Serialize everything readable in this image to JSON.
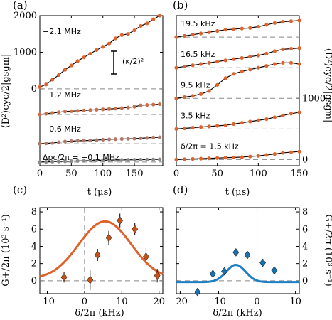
{
  "chart_data": [
    {
      "panel": "(a)",
      "type": "scatter",
      "xlabel": "t (μs)",
      "ylabel": "⟨D²⟩cyc/2|gsgm|",
      "xlim": [
        0,
        195
      ],
      "ylim": [
        -2100,
        2000
      ],
      "xticks": [
        0,
        50,
        100,
        150
      ],
      "yticks": [
        0,
        1000,
        2000
      ],
      "annotation": "(κ/2)²",
      "series": [
        {
          "name": "−2.1 MHz",
          "color": "#e0622a",
          "offset": 0,
          "x": [
            0,
            10,
            20,
            30,
            40,
            50,
            60,
            70,
            80,
            90,
            100,
            110,
            120,
            130,
            140,
            150,
            160,
            170,
            180,
            190
          ],
          "y": [
            50,
            120,
            250,
            380,
            520,
            640,
            760,
            860,
            960,
            1060,
            1150,
            1240,
            1380,
            1470,
            1500,
            1600,
            1720,
            1790,
            1900,
            2000
          ]
        },
        {
          "name": "−1.2 MHz",
          "color": "#c8704a",
          "offset": -700,
          "x": [
            0,
            10,
            20,
            30,
            40,
            50,
            60,
            70,
            80,
            90,
            100,
            110,
            120,
            130,
            140,
            150,
            160,
            170,
            180,
            190
          ],
          "y": [
            0,
            20,
            40,
            60,
            80,
            90,
            100,
            110,
            120,
            130,
            140,
            150,
            160,
            175,
            190,
            210,
            250,
            260,
            270,
            280
          ]
        },
        {
          "name": "−0.6 MHz",
          "color": "#b07a6a",
          "offset": -1500,
          "x": [
            0,
            10,
            20,
            30,
            40,
            50,
            60,
            70,
            80,
            90,
            100,
            110,
            120,
            130,
            140,
            150,
            160,
            170,
            180,
            190
          ],
          "y": [
            0,
            10,
            20,
            40,
            60,
            70,
            80,
            85,
            90,
            100,
            110,
            120,
            125,
            130,
            135,
            140,
            150,
            160,
            170,
            175
          ]
        },
        {
          "name": "Δpc/2π = −0.1 MHz",
          "color": "#8a8a8a",
          "offset": -2000,
          "x": [
            0,
            10,
            20,
            30,
            40,
            50,
            60,
            70,
            80,
            90,
            100,
            110,
            120,
            130,
            140,
            150,
            160,
            170,
            180,
            190
          ],
          "y": [
            0,
            5,
            10,
            15,
            20,
            25,
            30,
            35,
            40,
            45,
            48,
            50,
            55,
            58,
            60,
            62,
            65,
            68,
            70,
            72
          ]
        }
      ]
    },
    {
      "panel": "(b)",
      "type": "scatter",
      "xlabel": "t (μs)",
      "ylabel": "⟨D²⟩cyc/2|gsgm|",
      "xlim": [
        0,
        150
      ],
      "ylim": [
        -100,
        2350
      ],
      "xticks": [
        0,
        50,
        100,
        150
      ],
      "yticks": [
        0,
        1000
      ],
      "series": [
        {
          "name": "19.5 kHz",
          "color": "#e0622a",
          "offset": 2000,
          "x": [
            0,
            10,
            20,
            30,
            40,
            50,
            60,
            70,
            80,
            90,
            100,
            110,
            120,
            130,
            140,
            150
          ],
          "y": [
            0,
            20,
            40,
            60,
            80,
            100,
            120,
            130,
            140,
            150,
            170,
            200,
            230,
            250,
            260,
            270
          ]
        },
        {
          "name": "16.5 kHz",
          "color": "#e0622a",
          "offset": 1500,
          "x": [
            0,
            10,
            20,
            30,
            40,
            50,
            60,
            70,
            80,
            90,
            100,
            110,
            120,
            130,
            140,
            150
          ],
          "y": [
            0,
            20,
            40,
            60,
            80,
            100,
            120,
            140,
            160,
            180,
            200,
            230,
            270,
            300,
            310,
            320
          ]
        },
        {
          "name": "9.5 kHz",
          "color": "#e0622a",
          "offset": 1000,
          "x": [
            0,
            10,
            20,
            30,
            40,
            50,
            60,
            70,
            80,
            90,
            100,
            110,
            120,
            130,
            140,
            150
          ],
          "y": [
            0,
            20,
            40,
            70,
            120,
            220,
            330,
            400,
            440,
            470,
            500,
            530,
            560,
            580,
            580,
            560
          ]
        },
        {
          "name": "3.5 kHz",
          "color": "#e0622a",
          "offset": 500,
          "x": [
            0,
            10,
            20,
            30,
            40,
            50,
            60,
            70,
            80,
            90,
            100,
            110,
            120,
            130,
            140,
            150
          ],
          "y": [
            0,
            10,
            20,
            30,
            40,
            50,
            60,
            80,
            100,
            120,
            140,
            160,
            190,
            220,
            250,
            270
          ]
        },
        {
          "name": "δ/2π = 1.5 kHz",
          "color": "#e0622a",
          "offset": 0,
          "x": [
            0,
            10,
            20,
            30,
            40,
            50,
            60,
            70,
            80,
            90,
            100,
            110,
            120,
            130,
            140,
            150
          ],
          "y": [
            0,
            5,
            10,
            15,
            20,
            25,
            30,
            35,
            40,
            50,
            60,
            75,
            90,
            110,
            120,
            130
          ]
        }
      ]
    },
    {
      "panel": "(c)",
      "type": "scatter",
      "xlabel": "δ/2π (kHz)",
      "ylabel": "G+/2π (10³ s⁻¹)",
      "xlim": [
        -12,
        21
      ],
      "ylim": [
        -1.5,
        8.5
      ],
      "xticks": [
        -10,
        0,
        10,
        20
      ],
      "yticks": [
        0,
        2,
        4,
        6,
        8
      ],
      "color": "#e0622a",
      "marker_color": "#c2521c",
      "points": [
        {
          "x": -5.5,
          "y": 0.4,
          "err": 0.6
        },
        {
          "x": 1.5,
          "y": 0.1,
          "err": 1.2
        },
        {
          "x": 3.5,
          "y": 3.0,
          "err": 0.7
        },
        {
          "x": 6.5,
          "y": 5.0,
          "err": 0.8
        },
        {
          "x": 9.5,
          "y": 7.0,
          "err": 0.8
        },
        {
          "x": 13.5,
          "y": 6.0,
          "err": 0.7
        },
        {
          "x": 16.5,
          "y": 2.8,
          "err": 1.0
        },
        {
          "x": 19.5,
          "y": 0.6,
          "err": 0.8
        }
      ],
      "fit": {
        "center": 5.5,
        "width": 7,
        "amp": 6.7,
        "base": 0.2
      }
    },
    {
      "panel": "(d)",
      "type": "scatter",
      "xlabel": "δ/2π (kHz)",
      "ylabel": "G+/2π (10³ s⁻¹)",
      "xlim": [
        -21,
        11
      ],
      "ylim": [
        -1.5,
        8.5
      ],
      "xticks": [
        -20,
        -10,
        0,
        10
      ],
      "yticks": [
        0,
        2,
        4,
        6,
        8
      ],
      "color": "#1f7fc4",
      "marker_color": "#1a6fad",
      "points": [
        {
          "x": -15.5,
          "y": -1.3,
          "err": 0
        },
        {
          "x": -11.5,
          "y": 0.8,
          "err": 0
        },
        {
          "x": -8.5,
          "y": 1.1,
          "err": 0
        },
        {
          "x": -5.5,
          "y": 3.3,
          "err": 0
        },
        {
          "x": -2.5,
          "y": 3.0,
          "err": 0
        },
        {
          "x": 1.5,
          "y": 2.1,
          "err": 0
        },
        {
          "x": 4.5,
          "y": 1.2,
          "err": 0
        }
      ],
      "fit": {
        "center": -5.5,
        "width": 2.5,
        "amp": 2.0,
        "base": -0.15
      }
    }
  ]
}
